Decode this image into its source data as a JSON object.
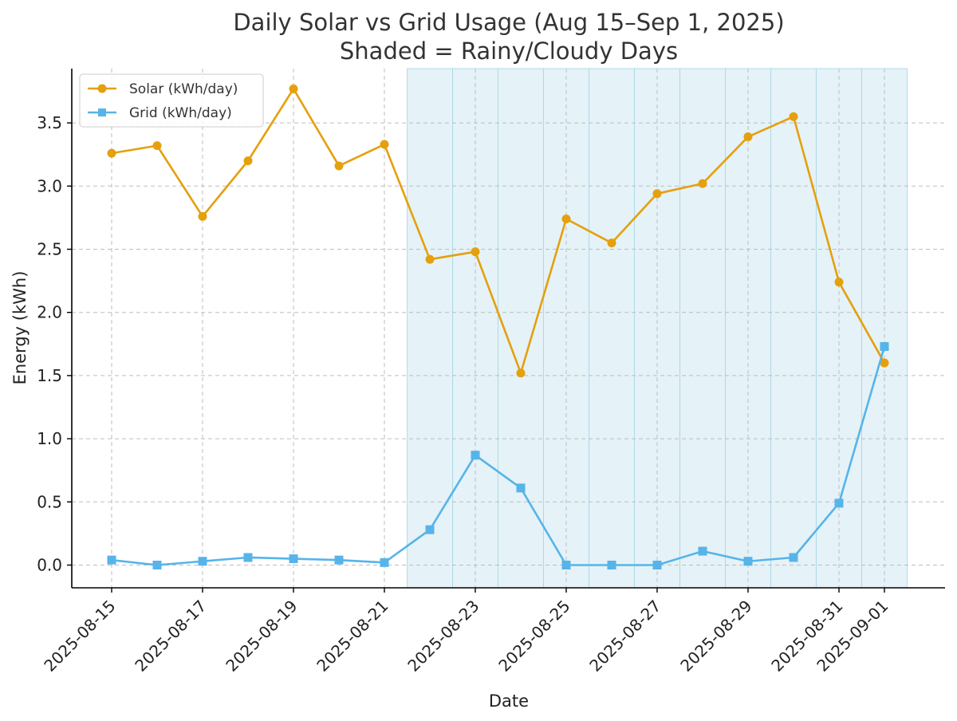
{
  "chart_data": {
    "type": "line",
    "title": "Daily Solar vs Grid Usage (Aug 15–Sep 1, 2025)",
    "subtitle": "Shaded = Rainy/Cloudy Days",
    "xlabel": "Date",
    "ylabel": "Energy (kWh)",
    "x": [
      "2025-08-15",
      "2025-08-16",
      "2025-08-17",
      "2025-08-18",
      "2025-08-19",
      "2025-08-20",
      "2025-08-21",
      "2025-08-22",
      "2025-08-23",
      "2025-08-24",
      "2025-08-25",
      "2025-08-26",
      "2025-08-27",
      "2025-08-28",
      "2025-08-29",
      "2025-08-30",
      "2025-08-31",
      "2025-09-01"
    ],
    "x_tick_labels": [
      "2025-08-15",
      "2025-08-17",
      "2025-08-19",
      "2025-08-21",
      "2025-08-23",
      "2025-08-25",
      "2025-08-27",
      "2025-08-29",
      "2025-08-31",
      "2025-09-01"
    ],
    "y_ticks": [
      "0.0",
      "0.5",
      "1.0",
      "1.5",
      "2.0",
      "2.5",
      "3.0",
      "3.5"
    ],
    "ylim": [
      -0.18,
      3.93
    ],
    "series": [
      {
        "name": "Solar (kWh/day)",
        "color": "#E5A00D",
        "marker": "circle",
        "values": [
          3.26,
          3.32,
          2.76,
          3.2,
          3.77,
          3.16,
          3.33,
          2.42,
          2.48,
          1.52,
          2.74,
          2.55,
          2.94,
          3.02,
          3.39,
          3.55,
          2.24,
          1.6
        ]
      },
      {
        "name": "Grid (kWh/day)",
        "color": "#56B4E9",
        "marker": "square",
        "values": [
          0.04,
          0.0,
          0.03,
          0.06,
          0.05,
          0.04,
          0.02,
          0.28,
          0.87,
          0.61,
          0.0,
          0.0,
          0.0,
          0.11,
          0.03,
          0.06,
          0.49,
          1.73
        ]
      }
    ],
    "shaded_days": [
      "2025-08-22",
      "2025-08-23",
      "2025-08-24",
      "2025-08-25",
      "2025-08-26",
      "2025-08-27",
      "2025-08-28",
      "2025-08-29",
      "2025-08-30",
      "2025-08-31",
      "2025-09-01"
    ],
    "shade_color": "#ADD8E6",
    "grid": true,
    "legend_position": "top-left"
  }
}
